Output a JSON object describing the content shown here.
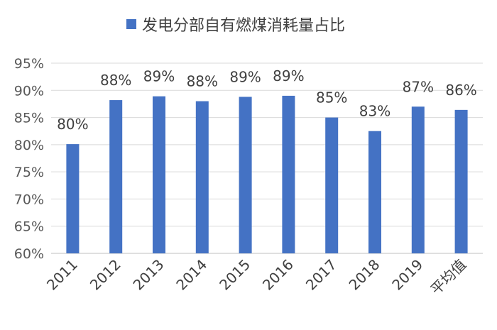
{
  "chart_data": {
    "type": "bar",
    "legend": {
      "position": "top",
      "entries": [
        "发电分部自有燃煤消耗量占比"
      ]
    },
    "series": [
      {
        "name": "发电分部自有燃煤消耗量占比",
        "color": "#4472C4",
        "values": [
          80.1,
          88.2,
          88.9,
          88.0,
          88.8,
          89.0,
          85.0,
          82.5,
          87.0,
          86.4
        ]
      }
    ],
    "categories": [
      "2011",
      "2012",
      "2013",
      "2014",
      "2015",
      "2016",
      "2017",
      "2018",
      "2019",
      "平均值"
    ],
    "data_labels": [
      "80%",
      "88%",
      "89%",
      "88%",
      "89%",
      "89%",
      "85%",
      "83%",
      "87%",
      "86%"
    ],
    "ylim": [
      60,
      95
    ],
    "yticks": [
      60,
      65,
      70,
      75,
      80,
      85,
      90,
      95
    ],
    "ytick_labels": [
      "60%",
      "65%",
      "70%",
      "75%",
      "80%",
      "85%",
      "90%",
      "95%"
    ],
    "grid": true
  }
}
